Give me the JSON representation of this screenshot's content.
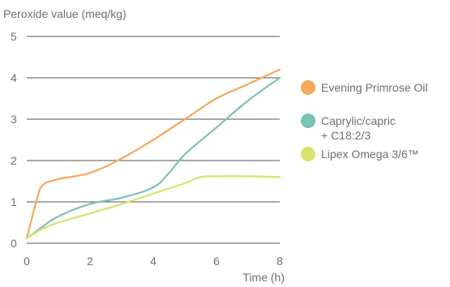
{
  "chart_data": {
    "type": "line",
    "ylabel": "Peroxide value (meq/kg)",
    "xlabel": "Time (h)",
    "xlim": [
      0,
      8
    ],
    "ylim": [
      0,
      5
    ],
    "x_ticks": [
      "0",
      "2",
      "4",
      "6",
      "8"
    ],
    "y_ticks": [
      "0",
      "1",
      "2",
      "3",
      "4",
      "5"
    ],
    "grid": "horizontal",
    "legend_position": "right",
    "series": [
      {
        "name": "Evening Primrose Oil",
        "color": "#f5a95a",
        "x": [
          0,
          0.3,
          0.5,
          1,
          2,
          3,
          4,
          5,
          6,
          7,
          8
        ],
        "y": [
          0.12,
          1.0,
          1.4,
          1.55,
          1.7,
          2.05,
          2.5,
          3.0,
          3.5,
          3.85,
          4.2
        ]
      },
      {
        "name": "Caprylic/capric\n+ C18:2/3",
        "name_lines": [
          "Caprylic/capric",
          "+ C18:2/3"
        ],
        "color": "#79c3b3",
        "x": [
          0,
          0.5,
          1,
          2,
          3,
          4,
          4.5,
          5,
          6,
          7,
          8
        ],
        "y": [
          0.12,
          0.4,
          0.65,
          0.95,
          1.1,
          1.35,
          1.7,
          2.15,
          2.8,
          3.45,
          4.0
        ]
      },
      {
        "name": "Lipex Omega 3/6™",
        "color": "#d9e26b",
        "x": [
          0,
          0.5,
          1,
          2,
          3,
          4,
          5,
          5.5,
          6,
          7,
          8
        ],
        "y": [
          0.12,
          0.35,
          0.5,
          0.72,
          0.95,
          1.2,
          1.45,
          1.6,
          1.62,
          1.62,
          1.6
        ]
      }
    ]
  }
}
